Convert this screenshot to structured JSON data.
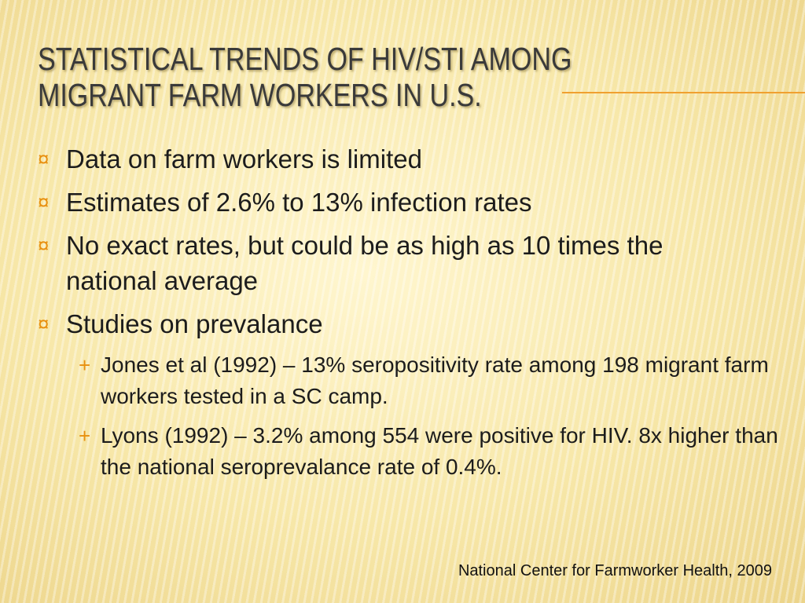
{
  "title": {
    "lines": [
      "STATISTICAL TRENDS OF HIV/STI AMONG",
      "MIGRANT FARM WORKERS IN U.S."
    ]
  },
  "bullets": [
    {
      "text": "Data on farm workers is limited"
    },
    {
      "text": "Estimates of 2.6% to 13% infection rates"
    },
    {
      "text": "No exact rates, but could be as high as 10 times the national average"
    },
    {
      "text": "Studies on prevalance",
      "sub_bullets": [
        "Jones et al (1992) – 13% seropositivity rate among 198 migrant farm workers tested in a SC camp.",
        "Lyons (1992) – 3.2% among 554 were positive for HIV. 8x higher than the national seroprevalance rate of 0.4%."
      ]
    }
  ],
  "citation": "National Center for Farmworker Health, 2009"
}
